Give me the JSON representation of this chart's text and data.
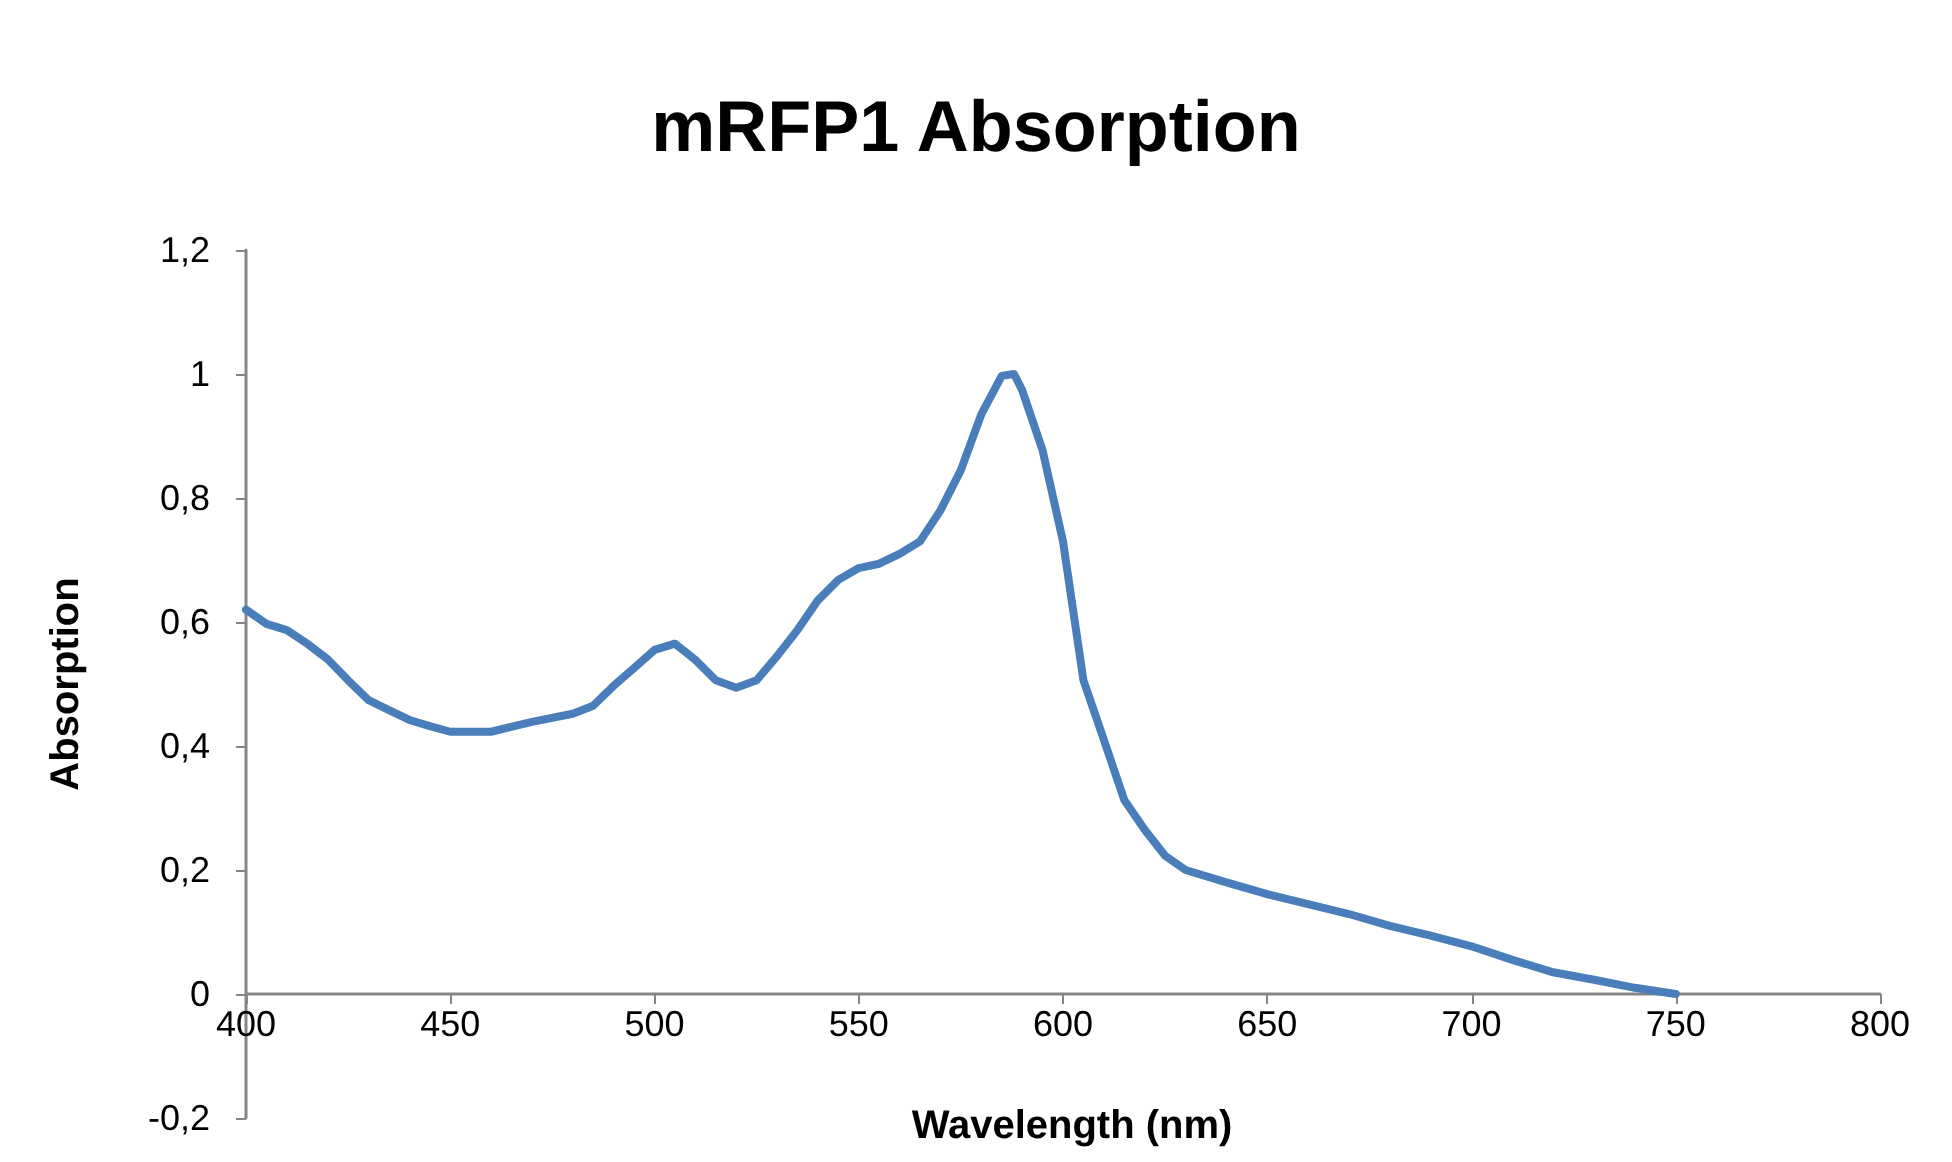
{
  "chart_data": {
    "type": "line",
    "title": "mRFP1 Absorption",
    "xlabel": "Wavelength (nm)",
    "ylabel": "Absorption",
    "x": [
      400,
      405,
      410,
      415,
      420,
      425,
      430,
      435,
      440,
      445,
      450,
      460,
      470,
      480,
      485,
      490,
      495,
      500,
      505,
      510,
      515,
      520,
      525,
      530,
      535,
      540,
      545,
      550,
      555,
      560,
      565,
      570,
      575,
      580,
      585,
      588,
      590,
      595,
      600,
      605,
      610,
      615,
      620,
      625,
      630,
      640,
      650,
      660,
      670,
      680,
      690,
      700,
      710,
      720,
      730,
      740,
      750
    ],
    "series": [
      {
        "color": "#4a7ebb",
        "values": [
          0.62,
          0.597,
          0.587,
          0.565,
          0.54,
          0.506,
          0.474,
          0.458,
          0.442,
          0.432,
          0.423,
          0.423,
          0.439,
          0.452,
          0.465,
          0.497,
          0.526,
          0.555,
          0.565,
          0.539,
          0.506,
          0.494,
          0.506,
          0.545,
          0.587,
          0.635,
          0.668,
          0.687,
          0.694,
          0.71,
          0.73,
          0.78,
          0.845,
          0.935,
          0.997,
          1.0,
          0.974,
          0.877,
          0.73,
          0.506,
          0.41,
          0.313,
          0.265,
          0.223,
          0.2,
          0.18,
          0.161,
          0.145,
          0.129,
          0.11,
          0.094,
          0.077,
          0.055,
          0.035,
          0.023,
          0.01,
          0.0
        ]
      }
    ],
    "xlim": [
      400,
      800
    ],
    "xticks": [
      400,
      450,
      500,
      550,
      600,
      650,
      700,
      750,
      800
    ],
    "ylim": [
      -0.2,
      1.2
    ],
    "yticks": [
      {
        "value": -0.2,
        "label": "-0,2"
      },
      0,
      {
        "value": 0.2,
        "label": "0,2"
      },
      {
        "value": 0.4,
        "label": "0,4"
      },
      {
        "value": 0.6,
        "label": "0,6"
      },
      {
        "value": 0.8,
        "label": "0,8"
      },
      1,
      {
        "value": 1.2,
        "label": "1,2"
      }
    ],
    "marker": "none",
    "line_style": "solid"
  }
}
